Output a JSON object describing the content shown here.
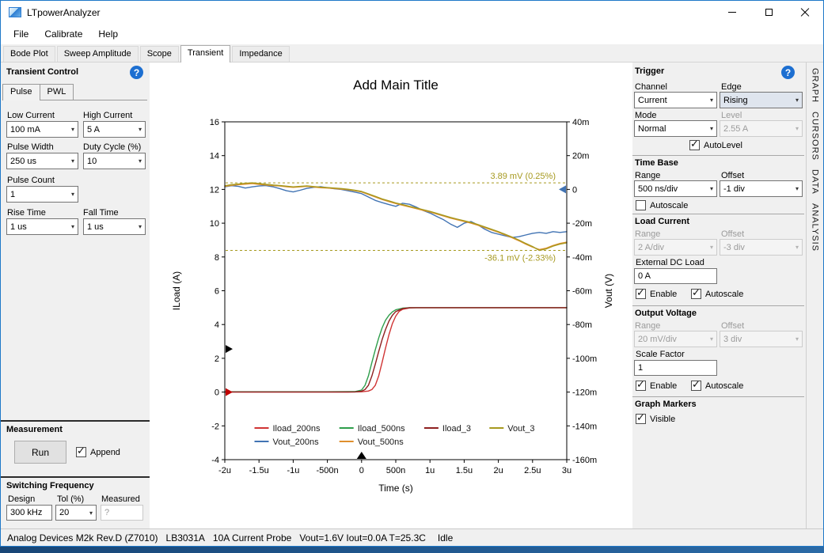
{
  "window": {
    "title": "LTpowerAnalyzer"
  },
  "icons": {
    "help_icon": "?",
    "combo_arrow_icon": "▾",
    "checkbox_check_icon": "✓",
    "minimize_icon": "–",
    "maximize_icon": "□",
    "close_icon": "✕"
  },
  "menu": {
    "items": [
      "File",
      "Calibrate",
      "Help"
    ]
  },
  "tabs": {
    "items": [
      "Bode Plot",
      "Sweep Amplitude",
      "Scope",
      "Transient",
      "Impedance"
    ],
    "active": "Transient"
  },
  "left_panel": {
    "header": "Transient Control",
    "subtabs": [
      "Pulse",
      "PWL"
    ],
    "subtabs_active": "Pulse",
    "fields": {
      "low_current": {
        "label": "Low Current",
        "value": "100 mA"
      },
      "high_current": {
        "label": "High Current",
        "value": "5 A"
      },
      "pulse_width": {
        "label": "Pulse Width",
        "value": "250 us"
      },
      "duty_cycle": {
        "label": "Duty Cycle (%)",
        "value": "10"
      },
      "pulse_count": {
        "label": "Pulse Count",
        "value": "1"
      },
      "rise_time": {
        "label": "Rise Time",
        "value": "1 us"
      },
      "fall_time": {
        "label": "Fall Time",
        "value": "1 us"
      }
    },
    "measurement": {
      "header": "Measurement",
      "run_label": "Run",
      "append_label": "Append",
      "append_checked": true
    },
    "switching": {
      "header": "Switching Frequency",
      "design_label": "Design",
      "design_value": "300 kHz",
      "tol_label": "Tol (%)",
      "tol_value": "20",
      "measured_label": "Measured",
      "measured_value": "?"
    }
  },
  "right_panel": {
    "trigger": {
      "header": "Trigger",
      "channel_label": "Channel",
      "channel_value": "Current",
      "edge_label": "Edge",
      "edge_value": "Rising",
      "mode_label": "Mode",
      "mode_value": "Normal",
      "level_label": "Level",
      "level_value": "2.55 A",
      "autolevel_label": "AutoLevel",
      "autolevel_checked": true
    },
    "time_base": {
      "header": "Time Base",
      "range_label": "Range",
      "range_value": "500 ns/div",
      "offset_label": "Offset",
      "offset_value": "-1 div",
      "autoscale_label": "Autoscale",
      "autoscale_checked": false
    },
    "load_current": {
      "header": "Load Current",
      "range_label": "Range",
      "range_value": "2 A/div",
      "offset_label": "Offset",
      "offset_value": "-3 div",
      "ext_label": "External DC Load",
      "ext_value": "0 A",
      "enable_label": "Enable",
      "enable_checked": true,
      "autoscale_label": "Autoscale",
      "autoscale_checked": true
    },
    "output_voltage": {
      "header": "Output Voltage",
      "range_label": "Range",
      "range_value": "20 mV/div",
      "offset_label": "Offset",
      "offset_value": "3 div",
      "scale_label": "Scale Factor",
      "scale_value": "1",
      "enable_label": "Enable",
      "enable_checked": true,
      "autoscale_label": "Autoscale",
      "autoscale_checked": true
    },
    "graph_markers": {
      "header": "Graph Markers",
      "visible_label": "Visible",
      "visible_checked": true
    }
  },
  "side_tabs": [
    "GRAPH",
    "CURSORS",
    "DATA",
    "ANALYSIS"
  ],
  "status_bar": {
    "device": "Analog Devices M2k Rev.D (Z7010)",
    "board": "LB3031A",
    "probe": "10A Current Probe",
    "readings": "Vout=1.6V Iout=0.0A T=25.3C",
    "state": "Idle"
  },
  "chart_data": {
    "type": "line",
    "title": "Add Main Title",
    "xlabel": "Time (s)",
    "ylabel_left": "ILoad (A)",
    "ylabel_right": "Vout (V)",
    "x_range_us": [
      -2,
      3
    ],
    "left_range": [
      -4,
      16
    ],
    "right_range_mV": [
      -160,
      40
    ],
    "grid": false,
    "legend_position": "inside-bottom-center",
    "x_ticks": [
      {
        "v": -2,
        "label": "-2u"
      },
      {
        "v": -1.5,
        "label": "-1.5u"
      },
      {
        "v": -1,
        "label": "-1u"
      },
      {
        "v": -0.5,
        "label": "-500n"
      },
      {
        "v": 0,
        "label": "0"
      },
      {
        "v": 0.5,
        "label": "500n"
      },
      {
        "v": 1,
        "label": "1u"
      },
      {
        "v": 1.5,
        "label": "1.5u"
      },
      {
        "v": 2,
        "label": "2u"
      },
      {
        "v": 2.5,
        "label": "2.5u"
      },
      {
        "v": 3,
        "label": "3u"
      }
    ],
    "left_ticks": [
      -4,
      -2,
      0,
      2,
      4,
      6,
      8,
      10,
      12,
      14,
      16
    ],
    "right_ticks": [
      {
        "v": -160,
        "label": "-160m"
      },
      {
        "v": -140,
        "label": "-140m"
      },
      {
        "v": -120,
        "label": "-120m"
      },
      {
        "v": -100,
        "label": "-100m"
      },
      {
        "v": -80,
        "label": "-80m"
      },
      {
        "v": -60,
        "label": "-60m"
      },
      {
        "v": -40,
        "label": "-40m"
      },
      {
        "v": -20,
        "label": "-20m"
      },
      {
        "v": 0,
        "label": "0"
      },
      {
        "v": 20,
        "label": "20m"
      },
      {
        "v": 40,
        "label": "40m"
      }
    ],
    "annotations": [
      {
        "text": "3.89 mV (0.25%)",
        "value_mV": 3.89,
        "color": "#a6991f"
      },
      {
        "text": "-36.1 mV (-2.33%)",
        "value_mV": -36.1,
        "color": "#a6991f"
      }
    ],
    "edge_markers": [
      {
        "name": "trigger-level-marker",
        "edge": "left",
        "axis": "left",
        "value": 2.55,
        "color": "#000000"
      },
      {
        "name": "iload-zero-marker",
        "edge": "left",
        "axis": "left",
        "value": 0,
        "color": "#c00000"
      },
      {
        "name": "vout-zero-marker",
        "edge": "right",
        "axis": "right",
        "value": 0,
        "color": "#4173b3"
      },
      {
        "name": "trigger-time-marker",
        "edge": "bottom",
        "axis": "x",
        "value": 0,
        "color": "#000000"
      }
    ],
    "legend_rows": [
      [
        "Iload_200ns",
        "Iload_500ns",
        "Iload_3",
        "Vout_3"
      ],
      [
        "Vout_200ns",
        "Vout_500ns"
      ]
    ],
    "series": [
      {
        "name": "Iload_200ns",
        "axis": "left",
        "color": "#d03434",
        "points": [
          [
            -2,
            0
          ],
          [
            -1.5,
            0
          ],
          [
            -1,
            0
          ],
          [
            -0.5,
            0
          ],
          [
            -0.2,
            0
          ],
          [
            0,
            0.02
          ],
          [
            0.1,
            0.06
          ],
          [
            0.15,
            0.15
          ],
          [
            0.2,
            0.4
          ],
          [
            0.25,
            0.95
          ],
          [
            0.3,
            1.75
          ],
          [
            0.35,
            2.6
          ],
          [
            0.4,
            3.4
          ],
          [
            0.45,
            4.05
          ],
          [
            0.5,
            4.5
          ],
          [
            0.55,
            4.78
          ],
          [
            0.6,
            4.9
          ],
          [
            0.7,
            4.98
          ],
          [
            0.8,
            5
          ],
          [
            1.5,
            5
          ],
          [
            2.2,
            5
          ],
          [
            3,
            5
          ]
        ]
      },
      {
        "name": "Iload_500ns",
        "axis": "left",
        "color": "#2e9e4b",
        "points": [
          [
            -2,
            0.02
          ],
          [
            -1.5,
            0.02
          ],
          [
            -1,
            0.02
          ],
          [
            -0.5,
            0.02
          ],
          [
            -0.1,
            0.03
          ],
          [
            0,
            0.12
          ],
          [
            0.05,
            0.4
          ],
          [
            0.1,
            0.95
          ],
          [
            0.15,
            1.75
          ],
          [
            0.2,
            2.5
          ],
          [
            0.25,
            3.2
          ],
          [
            0.3,
            3.8
          ],
          [
            0.35,
            4.25
          ],
          [
            0.4,
            4.55
          ],
          [
            0.45,
            4.75
          ],
          [
            0.5,
            4.87
          ],
          [
            0.6,
            4.97
          ],
          [
            0.7,
            5
          ],
          [
            1.5,
            5
          ],
          [
            2.2,
            5
          ],
          [
            3,
            5
          ]
        ]
      },
      {
        "name": "Iload_3",
        "axis": "left",
        "color": "#8e2020",
        "points": [
          [
            -2,
            0.01
          ],
          [
            -1.5,
            0.01
          ],
          [
            -1,
            0.01
          ],
          [
            -0.5,
            0.01
          ],
          [
            -0.1,
            0.01
          ],
          [
            0,
            0.05
          ],
          [
            0.05,
            0.15
          ],
          [
            0.1,
            0.4
          ],
          [
            0.15,
            0.95
          ],
          [
            0.2,
            1.65
          ],
          [
            0.25,
            2.4
          ],
          [
            0.3,
            3.1
          ],
          [
            0.35,
            3.7
          ],
          [
            0.4,
            4.2
          ],
          [
            0.45,
            4.55
          ],
          [
            0.5,
            4.77
          ],
          [
            0.6,
            4.94
          ],
          [
            0.7,
            5
          ],
          [
            1.5,
            5
          ],
          [
            2.2,
            5
          ],
          [
            3,
            5
          ]
        ]
      },
      {
        "name": "Vout_200ns",
        "axis": "right",
        "color": "#4173b3",
        "points": [
          [
            -2,
            1.5
          ],
          [
            -1.9,
            2.2
          ],
          [
            -1.8,
            1.8
          ],
          [
            -1.7,
            0.8
          ],
          [
            -1.6,
            1.5
          ],
          [
            -1.5,
            2
          ],
          [
            -1.4,
            2.3
          ],
          [
            -1.3,
            1.6
          ],
          [
            -1.2,
            0.5
          ],
          [
            -1.1,
            -0.8
          ],
          [
            -1,
            -1.5
          ],
          [
            -0.9,
            -0.5
          ],
          [
            -0.8,
            0.6
          ],
          [
            -0.7,
            1.2
          ],
          [
            -0.6,
            1.6
          ],
          [
            -0.5,
            1
          ],
          [
            -0.4,
            0.4
          ],
          [
            -0.3,
            0
          ],
          [
            -0.2,
            -0.8
          ],
          [
            -0.1,
            -1.6
          ],
          [
            0,
            -2.5
          ],
          [
            0.1,
            -4.5
          ],
          [
            0.2,
            -6.5
          ],
          [
            0.3,
            -7.8
          ],
          [
            0.4,
            -9
          ],
          [
            0.5,
            -10
          ],
          [
            0.6,
            -8.2
          ],
          [
            0.7,
            -8.8
          ],
          [
            0.8,
            -10.5
          ],
          [
            0.9,
            -12.5
          ],
          [
            1,
            -14
          ],
          [
            1.1,
            -16
          ],
          [
            1.2,
            -18
          ],
          [
            1.3,
            -20.5
          ],
          [
            1.4,
            -22.5
          ],
          [
            1.5,
            -20
          ],
          [
            1.6,
            -19
          ],
          [
            1.7,
            -21
          ],
          [
            1.8,
            -23.5
          ],
          [
            1.9,
            -25.5
          ],
          [
            2,
            -26.5
          ],
          [
            2.1,
            -27.5
          ],
          [
            2.2,
            -28.5
          ],
          [
            2.3,
            -28
          ],
          [
            2.4,
            -27
          ],
          [
            2.5,
            -26
          ],
          [
            2.6,
            -25.5
          ],
          [
            2.7,
            -26
          ],
          [
            2.8,
            -25
          ],
          [
            2.9,
            -25.5
          ],
          [
            3,
            -25
          ]
        ]
      },
      {
        "name": "Vout_500ns",
        "axis": "right",
        "color": "#df8f2d",
        "points": [
          [
            -2,
            1.8
          ],
          [
            -1.9,
            2.4
          ],
          [
            -1.8,
            2.8
          ],
          [
            -1.7,
            3.1
          ],
          [
            -1.6,
            3.4
          ],
          [
            -1.5,
            3
          ],
          [
            -1.4,
            2.6
          ],
          [
            -1.3,
            2.2
          ],
          [
            -1.2,
            2
          ],
          [
            -1.1,
            1.6
          ],
          [
            -1,
            1.2
          ],
          [
            -0.9,
            1.5
          ],
          [
            -0.8,
            1.8
          ],
          [
            -0.7,
            1.4
          ],
          [
            -0.6,
            1
          ],
          [
            -0.5,
            0.8
          ],
          [
            -0.4,
            0.5
          ],
          [
            -0.3,
            0.2
          ],
          [
            -0.2,
            -0.2
          ],
          [
            -0.1,
            -0.8
          ],
          [
            0,
            -1.5
          ],
          [
            0.1,
            -3
          ],
          [
            0.2,
            -4.5
          ],
          [
            0.3,
            -6
          ],
          [
            0.4,
            -7.2
          ],
          [
            0.5,
            -8.4
          ],
          [
            0.6,
            -9.4
          ],
          [
            0.7,
            -10.4
          ],
          [
            0.8,
            -11.4
          ],
          [
            0.9,
            -12.4
          ],
          [
            1,
            -13.4
          ],
          [
            1.1,
            -14.6
          ],
          [
            1.2,
            -15.8
          ],
          [
            1.3,
            -17
          ],
          [
            1.4,
            -18
          ],
          [
            1.5,
            -19
          ],
          [
            1.6,
            -20
          ],
          [
            1.7,
            -21.2
          ],
          [
            1.8,
            -22.6
          ],
          [
            1.9,
            -24
          ],
          [
            2,
            -25.4
          ],
          [
            2.1,
            -27
          ],
          [
            2.2,
            -28.6
          ],
          [
            2.3,
            -30.4
          ],
          [
            2.4,
            -32.4
          ],
          [
            2.5,
            -34.2
          ],
          [
            2.6,
            -35.6
          ],
          [
            2.7,
            -34.8
          ],
          [
            2.8,
            -33.2
          ],
          [
            2.9,
            -32
          ],
          [
            3,
            -31.2
          ]
        ]
      },
      {
        "name": "Vout_3",
        "axis": "right",
        "color": "#a6991f",
        "points": [
          [
            -2,
            2.2
          ],
          [
            -1.9,
            2.8
          ],
          [
            -1.8,
            3.2
          ],
          [
            -1.7,
            3.6
          ],
          [
            -1.6,
            3.89
          ],
          [
            -1.5,
            3.5
          ],
          [
            -1.4,
            3
          ],
          [
            -1.3,
            2.6
          ],
          [
            -1.2,
            2.3
          ],
          [
            -1.1,
            1.9
          ],
          [
            -1,
            1.5
          ],
          [
            -0.9,
            1.8
          ],
          [
            -0.8,
            2.1
          ],
          [
            -0.7,
            1.7
          ],
          [
            -0.6,
            1.3
          ],
          [
            -0.5,
            1.1
          ],
          [
            -0.4,
            0.8
          ],
          [
            -0.3,
            0.5
          ],
          [
            -0.2,
            0.1
          ],
          [
            -0.1,
            -0.5
          ],
          [
            0,
            -1.2
          ],
          [
            0.1,
            -2.6
          ],
          [
            0.2,
            -4.1
          ],
          [
            0.3,
            -5.6
          ],
          [
            0.4,
            -6.8
          ],
          [
            0.5,
            -8
          ],
          [
            0.6,
            -9
          ],
          [
            0.7,
            -10
          ],
          [
            0.8,
            -11
          ],
          [
            0.9,
            -12
          ],
          [
            1,
            -13
          ],
          [
            1.1,
            -14.2
          ],
          [
            1.2,
            -15.4
          ],
          [
            1.3,
            -16.6
          ],
          [
            1.4,
            -17.6
          ],
          [
            1.5,
            -18.6
          ],
          [
            1.6,
            -19.6
          ],
          [
            1.7,
            -20.8
          ],
          [
            1.8,
            -22.2
          ],
          [
            1.9,
            -23.6
          ],
          [
            2,
            -25
          ],
          [
            2.1,
            -26.6
          ],
          [
            2.2,
            -28.2
          ],
          [
            2.3,
            -30
          ],
          [
            2.4,
            -32
          ],
          [
            2.5,
            -33.8
          ],
          [
            2.6,
            -36.1
          ],
          [
            2.7,
            -35.2
          ],
          [
            2.8,
            -33.6
          ],
          [
            2.9,
            -32.4
          ],
          [
            3,
            -31.6
          ]
        ]
      }
    ]
  }
}
